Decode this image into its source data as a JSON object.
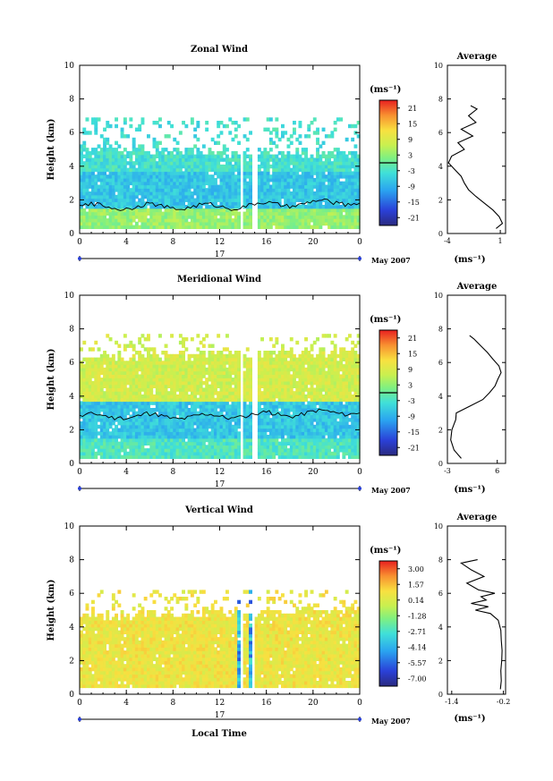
{
  "panels": [
    {
      "title": "Zonal Wind",
      "ylabel": "Height (km)",
      "unit_label": "(ms⁻¹)",
      "colorbar_ticks": [
        "21",
        "15",
        "9",
        "3",
        "-3",
        "-9",
        "-15",
        "-21"
      ],
      "avg_title": "Average",
      "avg_xlabel": "(ms⁻¹)",
      "avg_xticks": [
        "-4",
        "1"
      ],
      "date_label": "May 2007"
    },
    {
      "title": "Meridional Wind",
      "ylabel": "Height (km)",
      "unit_label": "(ms⁻¹)",
      "colorbar_ticks": [
        "21",
        "15",
        "9",
        "3",
        "-3",
        "-9",
        "-15",
        "-21"
      ],
      "avg_title": "Average",
      "avg_xlabel": "(ms⁻¹)",
      "avg_xticks": [
        "-3",
        "6"
      ],
      "date_label": "May 2007"
    },
    {
      "title": "Vertical Wind",
      "ylabel": "Height (km)",
      "unit_label": "(ms⁻¹)",
      "colorbar_ticks": [
        "3.00",
        "1.57",
        "0.14",
        "-1.28",
        "-2.71",
        "-4.14",
        "-5.57",
        "-7.00"
      ],
      "avg_title": "Average",
      "avg_xlabel": "(ms⁻¹)",
      "avg_xticks": [
        "-1.4",
        "-0.2"
      ],
      "date_label": "May 2007",
      "xlabel": "Local Time"
    }
  ],
  "chart_data": [
    {
      "type": "heatmap",
      "title": "Zonal Wind",
      "xlabel": "",
      "ylabel": "Height (km)",
      "x_ticks": [
        "0",
        "4",
        "8",
        "12",
        "16",
        "20",
        "0"
      ],
      "y_ticks": [
        "0",
        "2",
        "4",
        "6",
        "8",
        "10"
      ],
      "xlim": [
        0,
        24
      ],
      "ylim": [
        0,
        10
      ],
      "day_label": "17",
      "date_label": "May 2007",
      "colorbar": {
        "unit": "(ms⁻¹)",
        "min": -21,
        "max": 21,
        "zero_line": 0
      },
      "field": {
        "base": 0.3,
        "top_early": 5.0,
        "top_late": 4.6,
        "sparse_top": 6.8,
        "low_value": 3,
        "mid_value": -6,
        "upper_value": -3,
        "zero_contour_height": 1.6,
        "data_gap_hours": [
          [
            13.7,
            14.0
          ],
          [
            14.7,
            15.2
          ]
        ]
      },
      "profile": {
        "title": "Average",
        "xlabel": "(ms⁻¹)",
        "xlim": [
          -4,
          1.5
        ],
        "x_ticks": [
          -4,
          1
        ],
        "height": [
          0.3,
          0.6,
          1.0,
          1.4,
          1.8,
          2.2,
          2.6,
          3.0,
          3.4,
          3.8,
          4.2,
          4.6,
          5.0,
          5.4,
          5.8,
          6.2,
          6.6,
          7.0,
          7.4,
          7.6
        ],
        "value": [
          0.6,
          1.2,
          0.9,
          0.3,
          -0.5,
          -1.3,
          -2.0,
          -2.4,
          -2.7,
          -3.3,
          -3.9,
          -3.6,
          -2.4,
          -3.0,
          -1.6,
          -2.7,
          -1.3,
          -2.0,
          -1.2,
          -1.8
        ]
      }
    },
    {
      "type": "heatmap",
      "title": "Meridional Wind",
      "xlabel": "",
      "ylabel": "Height (km)",
      "x_ticks": [
        "0",
        "4",
        "8",
        "12",
        "16",
        "20",
        "0"
      ],
      "y_ticks": [
        "0",
        "2",
        "4",
        "6",
        "8",
        "10"
      ],
      "xlim": [
        0,
        24
      ],
      "ylim": [
        0,
        10
      ],
      "day_label": "17",
      "date_label": "May 2007",
      "colorbar": {
        "unit": "(ms⁻¹)",
        "min": -21,
        "max": 21,
        "zero_line": 0
      },
      "field": {
        "base": 0.3,
        "top_early": 6.2,
        "top_late": 6.6,
        "sparse_top": 7.6,
        "low_value": -2,
        "mid_value": -6,
        "upper_value": 7,
        "zero_contour_height": 2.8,
        "data_gap_hours": [
          [
            13.6,
            13.9
          ],
          [
            14.6,
            15.1
          ]
        ]
      },
      "profile": {
        "title": "Average",
        "xlabel": "(ms⁻¹)",
        "xlim": [
          -3,
          7.5
        ],
        "x_ticks": [
          -3,
          6
        ],
        "height": [
          0.3,
          0.8,
          1.4,
          2.0,
          2.6,
          3.0,
          3.4,
          3.8,
          4.2,
          4.6,
          5.0,
          5.4,
          5.8,
          6.2,
          6.6,
          7.0,
          7.4,
          7.6
        ],
        "value": [
          -0.5,
          -1.8,
          -2.4,
          -2.2,
          -1.5,
          -1.4,
          1.0,
          3.4,
          4.6,
          5.6,
          6.1,
          6.7,
          6.3,
          5.2,
          4.2,
          3.0,
          1.8,
          1.0
        ]
      }
    },
    {
      "type": "heatmap",
      "title": "Vertical Wind",
      "xlabel": "Local Time",
      "ylabel": "Height (km)",
      "x_ticks": [
        "0",
        "4",
        "8",
        "12",
        "16",
        "20",
        "0"
      ],
      "y_ticks": [
        "0",
        "2",
        "4",
        "6",
        "8",
        "10"
      ],
      "xlim": [
        0,
        24
      ],
      "ylim": [
        0,
        10
      ],
      "day_label": "17",
      "date_label": "May 2007",
      "colorbar": {
        "unit": "(ms⁻¹)",
        "min": -7.0,
        "max": 3.0,
        "zero_line": null
      },
      "field": {
        "base": 0.4,
        "top_early": 4.6,
        "top_late": 4.8,
        "sparse_top": 6.2,
        "low_value": 0.3,
        "mid_value": 0.3,
        "upper_value": 0.3,
        "zero_contour_height": null,
        "data_gap_hours": [
          [
            13.6,
            13.8
          ],
          [
            14.6,
            15.0
          ]
        ]
      },
      "profile": {
        "title": "Average",
        "xlabel": "(ms⁻¹)",
        "xlim": [
          -1.5,
          -0.15
        ],
        "x_ticks": [
          -1.4,
          -0.2
        ],
        "height": [
          0.3,
          0.8,
          1.4,
          2.0,
          2.6,
          3.2,
          3.8,
          4.4,
          4.8,
          5.0,
          5.2,
          5.4,
          5.6,
          5.8,
          6.0,
          6.2,
          6.6,
          7.0,
          7.4,
          7.8,
          8.0
        ],
        "value": [
          -0.27,
          -0.25,
          -0.26,
          -0.24,
          -0.23,
          -0.25,
          -0.26,
          -0.32,
          -0.5,
          -0.85,
          -0.55,
          -0.95,
          -0.6,
          -0.72,
          -0.4,
          -0.78,
          -1.05,
          -0.65,
          -0.95,
          -1.18,
          -0.8
        ]
      }
    }
  ]
}
